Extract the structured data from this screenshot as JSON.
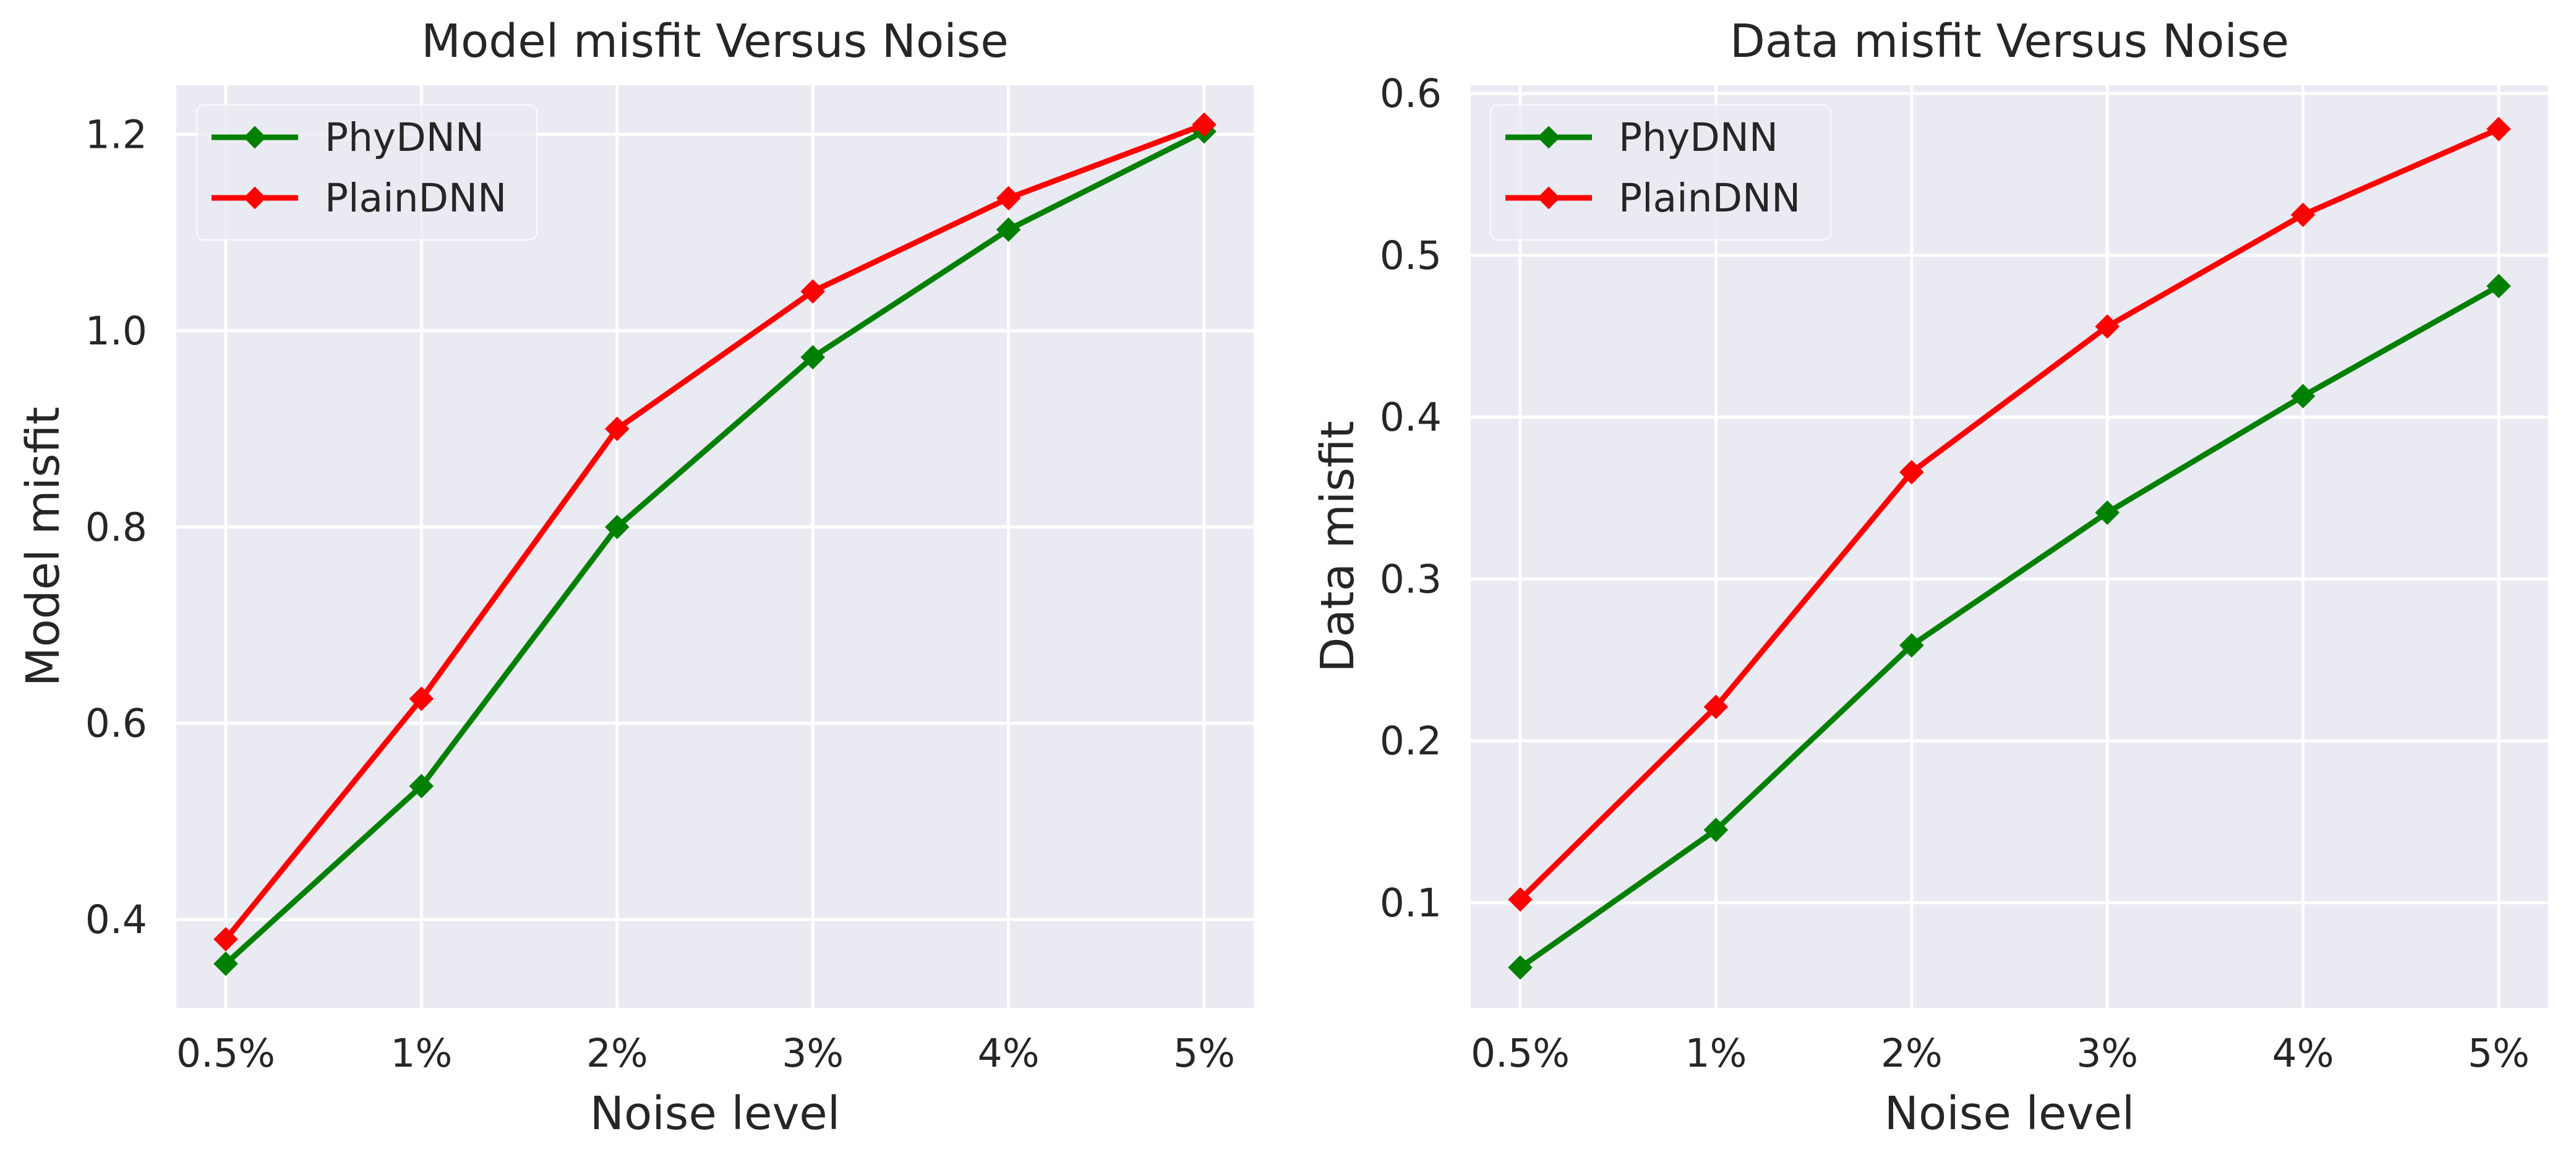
{
  "chart_data": [
    {
      "type": "line",
      "title": "Model misfit Versus Noise",
      "xlabel": "Noise level",
      "ylabel": "Model misfit",
      "categories": [
        "0.5%",
        "1%",
        "2%",
        "3%",
        "4%",
        "5%"
      ],
      "ylim": [
        0.31,
        1.25
      ],
      "yticks": [
        0.4,
        0.6,
        0.8,
        1.0,
        1.2
      ],
      "ytick_labels": [
        "0.4",
        "0.6",
        "0.8",
        "1.0",
        "1.2"
      ],
      "grid": true,
      "legend_position": "top-left",
      "series": [
        {
          "name": "PhyDNN",
          "color": "#008000",
          "values": [
            0.355,
            0.536,
            0.8,
            0.973,
            1.103,
            1.203
          ]
        },
        {
          "name": "PlainDNN",
          "color": "#ff0000",
          "values": [
            0.38,
            0.625,
            0.9,
            1.04,
            1.135,
            1.21
          ]
        }
      ]
    },
    {
      "type": "line",
      "title": "Data misfit Versus Noise",
      "xlabel": "Noise level",
      "ylabel": "Data misfit",
      "categories": [
        "0.5%",
        "1%",
        "2%",
        "3%",
        "4%",
        "5%"
      ],
      "ylim": [
        0.035,
        0.605
      ],
      "yticks": [
        0.1,
        0.2,
        0.3,
        0.4,
        0.5,
        0.6
      ],
      "ytick_labels": [
        "0.1",
        "0.2",
        "0.3",
        "0.4",
        "0.5",
        "0.6"
      ],
      "grid": true,
      "legend_position": "top-left",
      "series": [
        {
          "name": "PhyDNN",
          "color": "#008000",
          "values": [
            0.06,
            0.145,
            0.259,
            0.341,
            0.413,
            0.481
          ]
        },
        {
          "name": "PlainDNN",
          "color": "#ff0000",
          "values": [
            0.102,
            0.221,
            0.366,
            0.456,
            0.525,
            0.578
          ]
        }
      ]
    }
  ],
  "colors": {
    "plot_background": "#eaeaf2",
    "grid": "#ffffff",
    "text": "#262626"
  }
}
